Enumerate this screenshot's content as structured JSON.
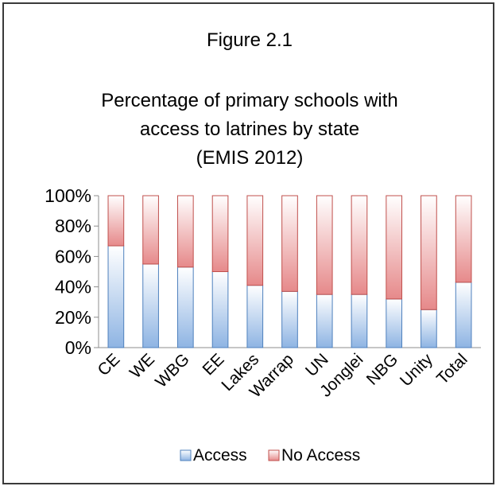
{
  "figure_label": "Figure 2.1",
  "chart_data": {
    "type": "bar",
    "stacked": true,
    "percent_stacked": true,
    "title_lines": [
      "Percentage of primary schools with",
      "access to latrines by state",
      "(EMIS 2012)"
    ],
    "categories": [
      "CE",
      "WE",
      "WBG",
      "EE",
      "Lakes",
      "Warrap",
      "UN",
      "Jonglei",
      "NBG",
      "Unity",
      "Total"
    ],
    "series": [
      {
        "name": "Access",
        "values": [
          67,
          55,
          53,
          50,
          41,
          37,
          35,
          35,
          32,
          25,
          43
        ],
        "color": "#8eb4e3"
      },
      {
        "name": "No Access",
        "values": [
          33,
          45,
          47,
          50,
          59,
          63,
          65,
          65,
          68,
          75,
          57
        ],
        "color": "#e6898a"
      }
    ],
    "ylim": [
      0,
      100
    ],
    "yticks": [
      "0%",
      "20%",
      "40%",
      "60%",
      "80%",
      "100%"
    ],
    "grid": false,
    "legend_position": "bottom"
  }
}
